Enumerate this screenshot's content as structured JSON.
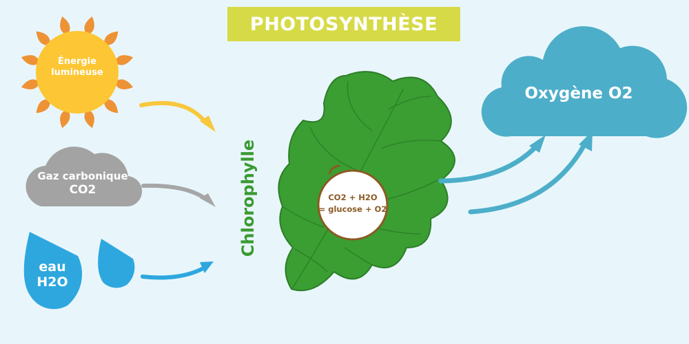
{
  "title": "PHOTOSYNTHÈSE",
  "inputs": {
    "light": {
      "line1": "Énergie",
      "line2": "lumineuse",
      "icon": "sun-icon",
      "color": "#fdc634"
    },
    "co2": {
      "line1": "Gaz carbonique",
      "line2": "CO2",
      "icon": "cloud-icon",
      "color": "#a3a3a3"
    },
    "water": {
      "line1": "eau",
      "line2": "H2O",
      "icon": "water-drop-icon",
      "color": "#2ea7df"
    }
  },
  "process": {
    "label": "Chlorophylle",
    "leaf_icon": "oak-leaf-icon",
    "equation_line1": "CO2 + H2O",
    "equation_line2": "= glucose + O2"
  },
  "output": {
    "label": "Oxygène O2",
    "icon": "cloud-icon",
    "color": "#4daec9"
  },
  "colors": {
    "background": "#e8f6fb",
    "title_bar": "#d6da46",
    "sun_rays": "#ee9236",
    "leaf": "#3a9e33",
    "leaf_outline": "#2d7d27",
    "equation_text": "#8b5a24",
    "sun_arrow": "#f8c73c",
    "gas_arrow": "#a6a6a6",
    "water_arrow": "#2ea7df",
    "oxygen_arrows": "#4daec9"
  }
}
